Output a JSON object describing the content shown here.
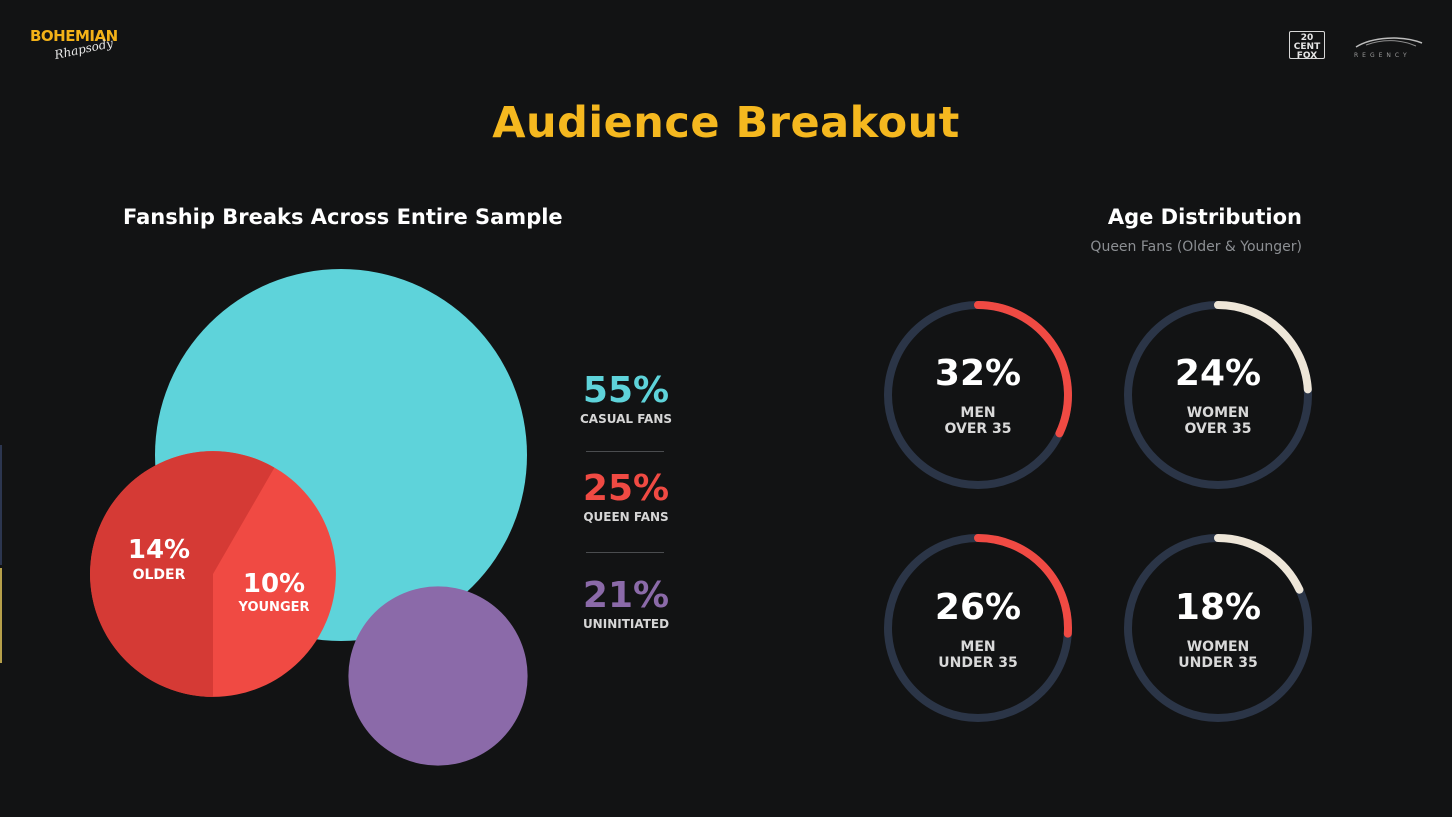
{
  "branding": {
    "logo_main": "BOHEMIAN",
    "logo_script": "Rhapsody",
    "studio_logo_text": "20th Century FOX",
    "partner_logo_text": "REGENCY"
  },
  "title": "Audience Breakout",
  "colors": {
    "title": "#f5b81f",
    "casual": "#5ed3da",
    "queen": "#f04a43",
    "queen_older": "#d53a35",
    "uninitiated": "#8b6aa9",
    "ring_track": "#2b3547",
    "men_arc": "#f04a43",
    "women_arc": "#eee6d8"
  },
  "chart_data": [
    {
      "type": "bubble",
      "title": "Fanship Breaks Across Entire Sample",
      "categories": [
        "CASUAL FANS",
        "QUEEN FANS",
        "UNINITIATED"
      ],
      "values": [
        55,
        25,
        21
      ],
      "value_labels": [
        "55%",
        "25%",
        "21%"
      ],
      "breakdown": {
        "parent": "QUEEN FANS",
        "categories": [
          "OLDER",
          "YOUNGER"
        ],
        "values": [
          14,
          10
        ],
        "value_labels": [
          "14%",
          "10%"
        ]
      }
    },
    {
      "type": "donut",
      "title": "Age Distribution",
      "subtitle": "Queen Fans (Older & Younger)",
      "categories": [
        "MEN\nOVER 35",
        "WOMEN\nOVER 35",
        "MEN\nUNDER 35",
        "WOMEN\nUNDER 35"
      ],
      "values": [
        32,
        24,
        26,
        18
      ],
      "value_labels": [
        "32%",
        "24%",
        "26%",
        "18%"
      ]
    }
  ]
}
